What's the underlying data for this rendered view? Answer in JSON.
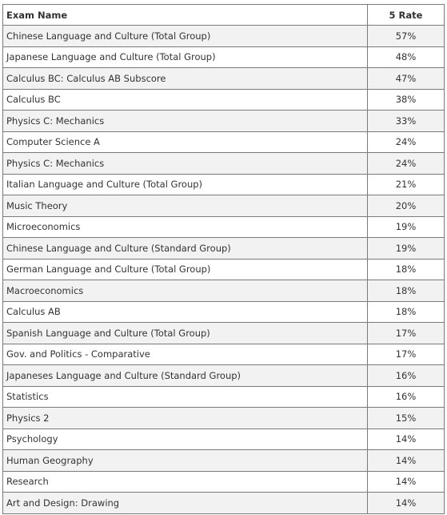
{
  "table": {
    "headers": {
      "name": "Exam Name",
      "rate": "5 Rate"
    },
    "rows": [
      {
        "name": "Chinese Language and Culture (Total Group)",
        "rate": "57%"
      },
      {
        "name": "Japanese Language and Culture (Total Group)",
        "rate": "48%"
      },
      {
        "name": "Calculus BC: Calculus AB Subscore",
        "rate": "47%"
      },
      {
        "name": "Calculus BC",
        "rate": "38%"
      },
      {
        "name": "Physics C: Mechanics",
        "rate": "33%"
      },
      {
        "name": "Computer Science A",
        "rate": "24%"
      },
      {
        "name": "Physics C: Mechanics",
        "rate": "24%"
      },
      {
        "name": "Italian Language and Culture (Total Group)",
        "rate": "21%"
      },
      {
        "name": "Music Theory",
        "rate": "20%"
      },
      {
        "name": "Microeconomics",
        "rate": "19%"
      },
      {
        "name": "Chinese Language and Culture (Standard Group)",
        "rate": "19%"
      },
      {
        "name": "German Language and Culture (Total Group)",
        "rate": "18%"
      },
      {
        "name": "Macroeconomics",
        "rate": "18%"
      },
      {
        "name": "Calculus AB",
        "rate": "18%"
      },
      {
        "name": "Spanish Language and Culture (Total Group)",
        "rate": "17%"
      },
      {
        "name": "Gov. and Politics - Comparative",
        "rate": "17%"
      },
      {
        "name": "Japaneses Language and Culture (Standard Group)",
        "rate": "16%"
      },
      {
        "name": "Statistics",
        "rate": "16%"
      },
      {
        "name": "Physics 2",
        "rate": "15%"
      },
      {
        "name": "Psychology",
        "rate": "14%"
      },
      {
        "name": "Human Geography",
        "rate": "14%"
      },
      {
        "name": "Research",
        "rate": "14%"
      },
      {
        "name": "Art and Design: Drawing",
        "rate": "14%"
      }
    ]
  }
}
